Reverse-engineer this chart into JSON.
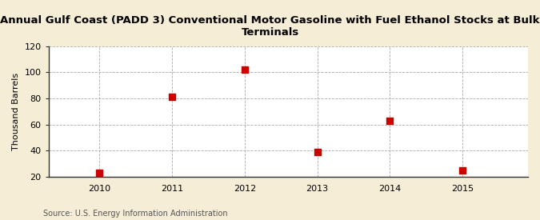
{
  "title": "Annual Gulf Coast (PADD 3) Conventional Motor Gasoline with Fuel Ethanol Stocks at Bulk\nTerminals",
  "ylabel": "Thousand Barrels",
  "years": [
    2010,
    2011,
    2012,
    2013,
    2014,
    2015
  ],
  "values": [
    23,
    81,
    102,
    39,
    63,
    25
  ],
  "ylim": [
    20,
    120
  ],
  "yticks": [
    20,
    40,
    60,
    80,
    100,
    120
  ],
  "marker_color": "#CC0000",
  "marker_size": 36,
  "bg_color": "#F5EDD6",
  "plot_bg_color": "#FFFFFF",
  "grid_color": "#AAAAAA",
  "spine_color": "#333333",
  "title_fontsize": 9.5,
  "axis_fontsize": 8,
  "tick_fontsize": 8,
  "source_text": "Source: U.S. Energy Information Administration",
  "source_fontsize": 7
}
